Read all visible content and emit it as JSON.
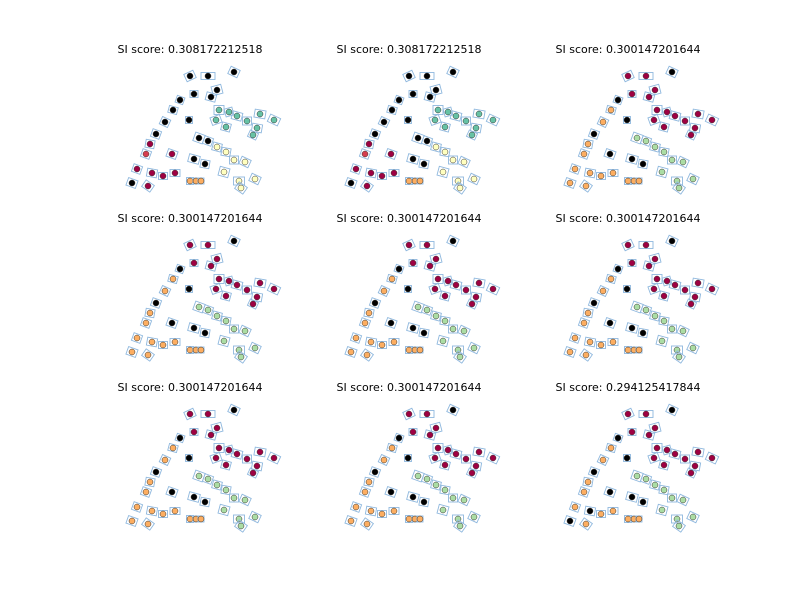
{
  "chart_data": {
    "type": "scatter",
    "grid": false,
    "legend": "none",
    "panels": [
      {
        "title": "SI score: 0.308172212518",
        "variant": "A"
      },
      {
        "title": "SI score: 0.308172212518",
        "variant": "A"
      },
      {
        "title": "SI score: 0.300147201644",
        "variant": "B"
      },
      {
        "title": "SI score: 0.300147201644",
        "variant": "B"
      },
      {
        "title": "SI score: 0.300147201644",
        "variant": "B"
      },
      {
        "title": "SI score: 0.300147201644",
        "variant": "B"
      },
      {
        "title": "SI score: 0.300147201644",
        "variant": "B"
      },
      {
        "title": "SI score: 0.300147201644",
        "variant": "B"
      },
      {
        "title": "SI score: 0.294125417844",
        "variant": "C"
      }
    ],
    "colors": {
      "box_edge": "#8fb8de",
      "cluster_0": "#000000",
      "cluster_1": "#9e0142",
      "cluster_2": "#fdae61",
      "cluster_3": "#abdda4",
      "cluster_4": "#66c2a5",
      "cluster_5": "#ffffbf",
      "cluster_6": "#d53e4f"
    }
  }
}
